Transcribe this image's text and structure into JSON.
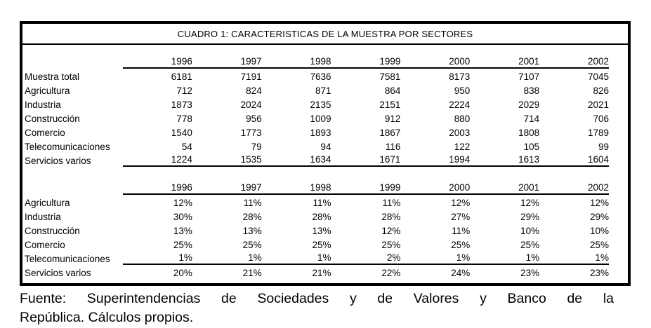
{
  "title": "CUADRO 1: CARACTERISTICAS DE LA MUESTRA POR SECTORES",
  "years": [
    "1996",
    "1997",
    "1998",
    "1999",
    "2000",
    "2001",
    "2002"
  ],
  "counts": {
    "rows": [
      {
        "label": "Muestra total",
        "values": [
          "6181",
          "7191",
          "7636",
          "7581",
          "8173",
          "7107",
          "7045"
        ]
      },
      {
        "label": "Agricultura",
        "values": [
          "712",
          "824",
          "871",
          "864",
          "950",
          "838",
          "826"
        ]
      },
      {
        "label": "Industria",
        "values": [
          "1873",
          "2024",
          "2135",
          "2151",
          "2224",
          "2029",
          "2021"
        ]
      },
      {
        "label": "Construcción",
        "values": [
          "778",
          "956",
          "1009",
          "912",
          "880",
          "714",
          "706"
        ]
      },
      {
        "label": "Comercio",
        "values": [
          "1540",
          "1773",
          "1893",
          "1867",
          "2003",
          "1808",
          "1789"
        ]
      },
      {
        "label": "Telecomunicaciones",
        "values": [
          "54",
          "79",
          "94",
          "116",
          "122",
          "105",
          "99"
        ]
      },
      {
        "label": "Servicios varios",
        "values": [
          "1224",
          "1535",
          "1634",
          "1671",
          "1994",
          "1613",
          "1604"
        ]
      }
    ]
  },
  "percentages": {
    "rows": [
      {
        "label": "Agricultura",
        "values": [
          "12%",
          "11%",
          "11%",
          "11%",
          "12%",
          "12%",
          "12%"
        ]
      },
      {
        "label": "Industria",
        "values": [
          "30%",
          "28%",
          "28%",
          "28%",
          "27%",
          "29%",
          "29%"
        ]
      },
      {
        "label": "Construcción",
        "values": [
          "13%",
          "13%",
          "13%",
          "12%",
          "11%",
          "10%",
          "10%"
        ]
      },
      {
        "label": "Comercio",
        "values": [
          "25%",
          "25%",
          "25%",
          "25%",
          "25%",
          "25%",
          "25%"
        ]
      },
      {
        "label": "Telecomunicaciones",
        "values": [
          "1%",
          "1%",
          "1%",
          "2%",
          "1%",
          "1%",
          "1%"
        ]
      },
      {
        "label": "Servicios varios",
        "values": [
          "20%",
          "21%",
          "21%",
          "22%",
          "24%",
          "23%",
          "23%"
        ]
      }
    ]
  },
  "source_note": "Fuente: Superintendencias de Sociedades y de Valores y Banco de la República. Cálculos propios.",
  "source_note_lines": [
    "Fuente: Superintendencias de Sociedades y de Valores y Banco de la",
    "República. Cálculos propios."
  ]
}
